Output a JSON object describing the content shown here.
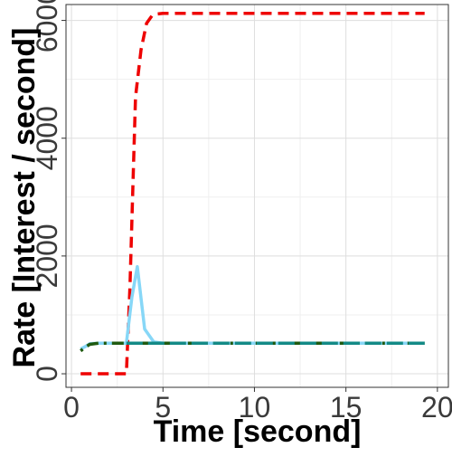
{
  "chart_data": {
    "type": "line",
    "title": "",
    "xlabel": "Time [second]",
    "ylabel": "Rate [Interest / second]",
    "xlim": [
      -0.3,
      20.6
    ],
    "ylim": [
      -230,
      6270
    ],
    "xticks": [
      0,
      5,
      10,
      15,
      20
    ],
    "yticks": [
      0,
      2000,
      4000,
      6000
    ],
    "xtick_labels": [
      "0",
      "5",
      "10",
      "15",
      "20"
    ],
    "ytick_labels": [
      "0",
      "2000",
      "4000",
      "6000"
    ],
    "grid": true,
    "legend": "none",
    "series": [
      {
        "name": "series-red-dashed",
        "color": "#ee0000",
        "dash": "dashed",
        "x": [
          0.5,
          3.0,
          3.2,
          3.5,
          3.8,
          4.1,
          4.4,
          4.7,
          5.0,
          6.0,
          8.0,
          10.0,
          15.0,
          19.3
        ],
        "y": [
          0,
          0,
          1500,
          4700,
          5500,
          5950,
          6080,
          6110,
          6120,
          6120,
          6120,
          6120,
          6120,
          6120
        ]
      },
      {
        "name": "series-light-blue-solid",
        "color": "#87d7f7",
        "dash": "solid",
        "x": [
          0.5,
          0.8,
          1.0,
          1.5,
          2.0,
          2.5,
          3.0,
          3.3,
          3.6,
          4.0,
          4.5,
          5.0,
          6.0,
          8.0,
          10.0,
          15.0,
          19.3
        ],
        "y": [
          420,
          470,
          510,
          520,
          520,
          520,
          520,
          1300,
          1820,
          760,
          540,
          520,
          520,
          520,
          520,
          520,
          520
        ]
      },
      {
        "name": "series-dark-green-dotdash",
        "color": "#1f5a10",
        "dash": "dotdash",
        "x": [
          0.5,
          0.8,
          1.0,
          1.5,
          2.0,
          3.0,
          5.0,
          10.0,
          15.0,
          19.3
        ],
        "y": [
          390,
          460,
          500,
          520,
          520,
          520,
          520,
          520,
          520,
          520
        ]
      },
      {
        "name": "series-teal-longdash",
        "color": "#138a86",
        "dash": "longdash",
        "x": [
          3.0,
          5.0,
          10.0,
          15.0,
          19.3
        ],
        "y": [
          520,
          520,
          520,
          520,
          520
        ]
      }
    ]
  }
}
